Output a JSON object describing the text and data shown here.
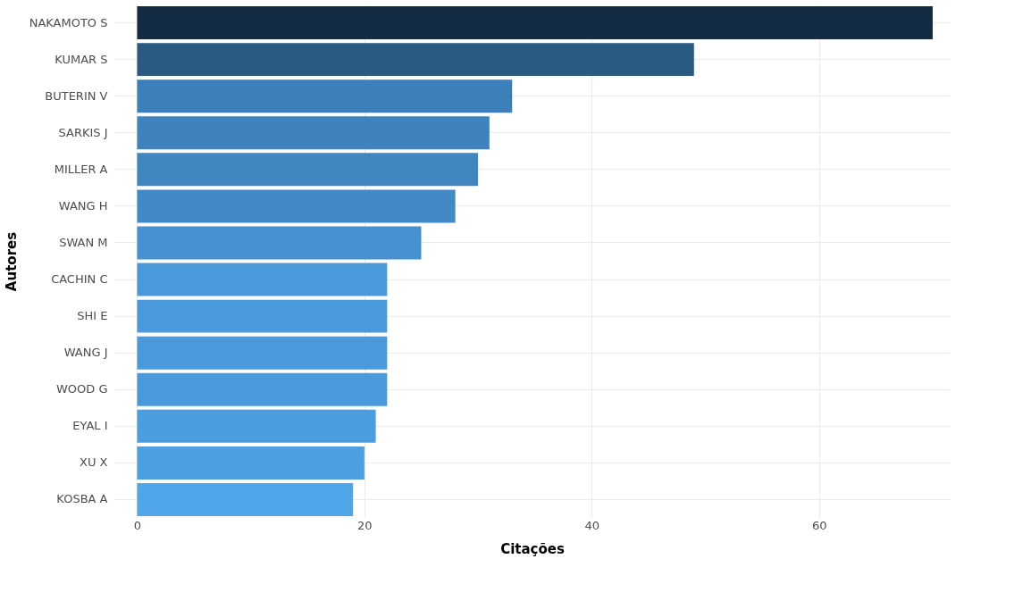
{
  "chart_data": {
    "type": "bar",
    "orientation": "horizontal",
    "xlabel": "Citações",
    "ylabel": "Autores",
    "categories": [
      "NAKAMOTO S",
      "KUMAR S",
      "BUTERIN V",
      "SARKIS J",
      "MILLER A",
      "WANG H",
      "SWAN M",
      "CACHIN C",
      "SHI E",
      "WANG J",
      "WOOD G",
      "EYAL I",
      "XU X",
      "KOSBA A"
    ],
    "values": [
      70,
      49,
      33,
      31,
      30,
      28,
      25,
      22,
      22,
      22,
      22,
      21,
      20,
      19
    ],
    "colors": [
      "#132b43",
      "#2b5a83",
      "#3d7fb8",
      "#3f83bd",
      "#4086c0",
      "#428ac6",
      "#4692d0",
      "#4a9adb",
      "#4a9adb",
      "#4a9adb",
      "#4a9adb",
      "#4c9ddd",
      "#4e9fe0",
      "#51a6ea"
    ],
    "xlim": [
      -2,
      71.5
    ],
    "xticks": [
      0,
      20,
      40,
      60
    ],
    "grid": true
  }
}
